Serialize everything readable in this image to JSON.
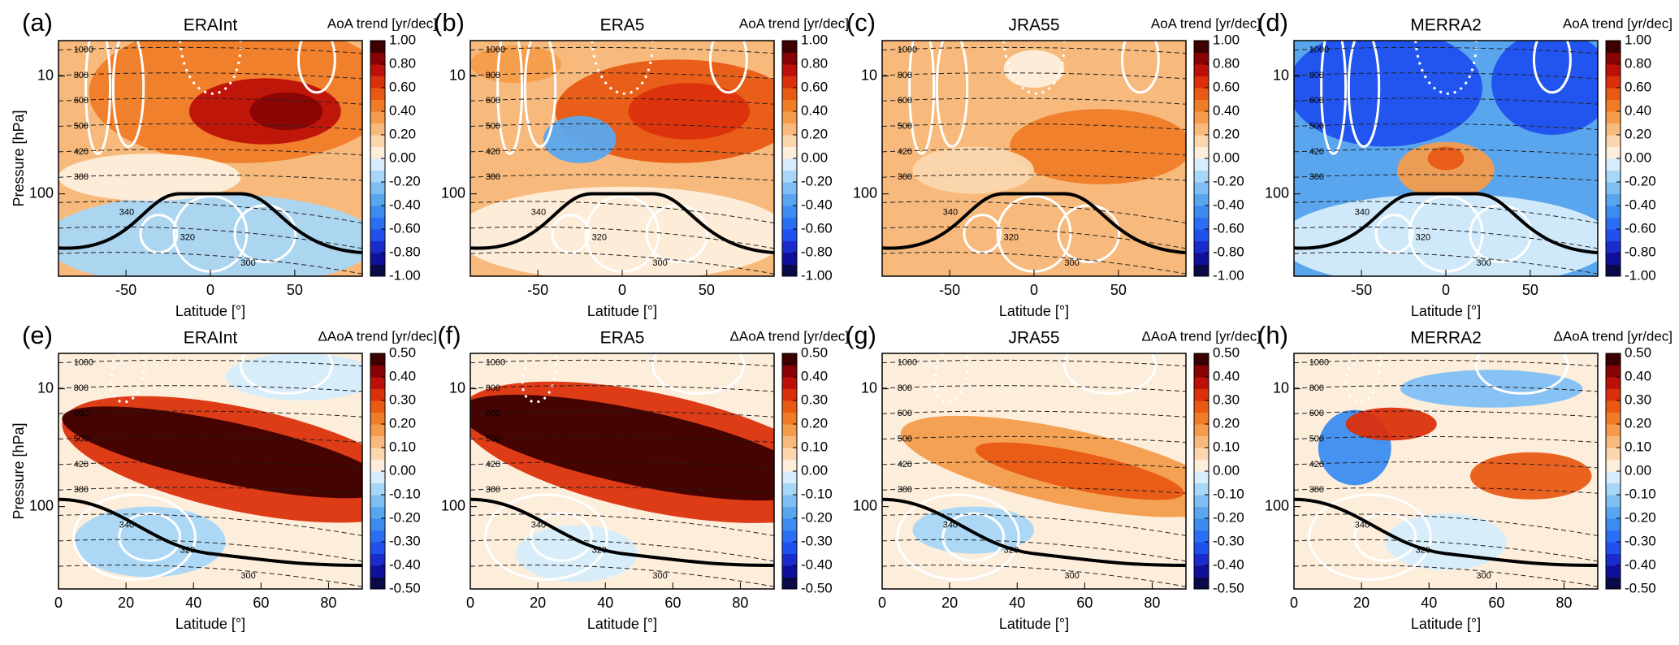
{
  "chart_data": [
    {
      "type": "contour",
      "panel_label": "(a)",
      "title": "ERAInt",
      "colorbar_label": "AoA trend [yr/dec]",
      "xlabel": "Latitude [°]",
      "ylabel": "Pressure [hPa]",
      "xlim": [
        -90,
        90
      ],
      "xticks": [
        -50,
        0,
        50
      ],
      "ylim": [
        500,
        5
      ],
      "yticks": [
        10,
        100
      ],
      "log_y": true,
      "clim": [
        -1,
        1
      ],
      "cticks": [
        {
          "value": 1,
          "label": "1.00"
        },
        {
          "value": 0.8,
          "label": "0.80"
        },
        {
          "value": 0.6,
          "label": "0.60"
        },
        {
          "value": 0.4,
          "label": "0.40"
        },
        {
          "value": 0.2,
          "label": "0.20"
        },
        {
          "value": 0,
          "label": "0.00"
        },
        {
          "value": -0.2,
          "label": "-0.20"
        },
        {
          "value": -0.4,
          "label": "-0.40"
        },
        {
          "value": -0.6,
          "label": "-0.60"
        },
        {
          "value": -0.8,
          "label": "-0.80"
        },
        {
          "value": -1,
          "label": "-1.00"
        }
      ]
    },
    {
      "type": "contour",
      "panel_label": "(b)",
      "title": "ERA5",
      "colorbar_label": "AoA trend [yr/dec]",
      "xlabel": "Latitude [°]",
      "xlim": [
        -90,
        90
      ],
      "xticks": [
        -50,
        0,
        50
      ],
      "ylim": [
        500,
        5
      ],
      "yticks": [
        10,
        100
      ],
      "log_y": true,
      "clim": [
        -1,
        1
      ],
      "cticks": [
        {
          "value": 1,
          "label": "1.00"
        },
        {
          "value": 0.8,
          "label": "0.80"
        },
        {
          "value": 0.6,
          "label": "0.60"
        },
        {
          "value": 0.4,
          "label": "0.40"
        },
        {
          "value": 0.2,
          "label": "0.20"
        },
        {
          "value": 0,
          "label": "0.00"
        },
        {
          "value": -0.2,
          "label": "-0.20"
        },
        {
          "value": -0.4,
          "label": "-0.40"
        },
        {
          "value": -0.6,
          "label": "-0.60"
        },
        {
          "value": -0.8,
          "label": "-0.80"
        },
        {
          "value": -1,
          "label": "-1.00"
        }
      ]
    },
    {
      "type": "contour",
      "panel_label": "(c)",
      "title": "JRA55",
      "colorbar_label": "AoA trend [yr/dec]",
      "xlabel": "Latitude [°]",
      "xlim": [
        -90,
        90
      ],
      "xticks": [
        -50,
        0,
        50
      ],
      "ylim": [
        500,
        5
      ],
      "yticks": [
        10,
        100
      ],
      "log_y": true,
      "clim": [
        -1,
        1
      ],
      "cticks": [
        {
          "value": 1,
          "label": "1.00"
        },
        {
          "value": 0.8,
          "label": "0.80"
        },
        {
          "value": 0.6,
          "label": "0.60"
        },
        {
          "value": 0.4,
          "label": "0.40"
        },
        {
          "value": 0.2,
          "label": "0.20"
        },
        {
          "value": 0,
          "label": "0.00"
        },
        {
          "value": -0.2,
          "label": "-0.20"
        },
        {
          "value": -0.4,
          "label": "-0.40"
        },
        {
          "value": -0.6,
          "label": "-0.60"
        },
        {
          "value": -0.8,
          "label": "-0.80"
        },
        {
          "value": -1,
          "label": "-1.00"
        }
      ]
    },
    {
      "type": "contour",
      "panel_label": "(d)",
      "title": "MERRA2",
      "colorbar_label": "AoA trend [yr/dec]",
      "xlabel": "Latitude [°]",
      "xlim": [
        -90,
        90
      ],
      "xticks": [
        -50,
        0,
        50
      ],
      "ylim": [
        500,
        5
      ],
      "yticks": [
        10,
        100
      ],
      "log_y": true,
      "clim": [
        -1,
        1
      ],
      "cticks": [
        {
          "value": 1,
          "label": "1.00"
        },
        {
          "value": 0.8,
          "label": "0.80"
        },
        {
          "value": 0.6,
          "label": "0.60"
        },
        {
          "value": 0.4,
          "label": "0.40"
        },
        {
          "value": 0.2,
          "label": "0.20"
        },
        {
          "value": 0,
          "label": "0.00"
        },
        {
          "value": -0.2,
          "label": "-0.20"
        },
        {
          "value": -0.4,
          "label": "-0.40"
        },
        {
          "value": -0.6,
          "label": "-0.60"
        },
        {
          "value": -0.8,
          "label": "-0.80"
        },
        {
          "value": -1,
          "label": "-1.00"
        }
      ]
    },
    {
      "type": "contour",
      "panel_label": "(e)",
      "title": "ERAInt",
      "colorbar_label": "ΔAoA trend [yr/dec]",
      "xlabel": "Latitude [°]",
      "ylabel": "Pressure [hPa]",
      "xlim": [
        0,
        90
      ],
      "xticks": [
        0,
        20,
        40,
        60,
        80
      ],
      "ylim": [
        500,
        5
      ],
      "yticks": [
        10,
        100
      ],
      "log_y": true,
      "clim": [
        -0.5,
        0.5
      ],
      "cticks": [
        {
          "value": 0.5,
          "label": "0.50"
        },
        {
          "value": 0.4,
          "label": "0.40"
        },
        {
          "value": 0.3,
          "label": "0.30"
        },
        {
          "value": 0.2,
          "label": "0.20"
        },
        {
          "value": 0.1,
          "label": "0.10"
        },
        {
          "value": 0,
          "label": "0.00"
        },
        {
          "value": -0.1,
          "label": "-0.10"
        },
        {
          "value": -0.2,
          "label": "-0.20"
        },
        {
          "value": -0.3,
          "label": "-0.30"
        },
        {
          "value": -0.4,
          "label": "-0.40"
        },
        {
          "value": -0.5,
          "label": "-0.50"
        }
      ]
    },
    {
      "type": "contour",
      "panel_label": "(f)",
      "title": "ERA5",
      "colorbar_label": "ΔAoA trend [yr/dec]",
      "xlabel": "Latitude [°]",
      "xlim": [
        0,
        90
      ],
      "xticks": [
        0,
        20,
        40,
        60,
        80
      ],
      "ylim": [
        500,
        5
      ],
      "yticks": [
        10,
        100
      ],
      "log_y": true,
      "clim": [
        -0.5,
        0.5
      ],
      "cticks": [
        {
          "value": 0.5,
          "label": "0.50"
        },
        {
          "value": 0.4,
          "label": "0.40"
        },
        {
          "value": 0.3,
          "label": "0.30"
        },
        {
          "value": 0.2,
          "label": "0.20"
        },
        {
          "value": 0.1,
          "label": "0.10"
        },
        {
          "value": 0,
          "label": "0.00"
        },
        {
          "value": -0.1,
          "label": "-0.10"
        },
        {
          "value": -0.2,
          "label": "-0.20"
        },
        {
          "value": -0.3,
          "label": "-0.30"
        },
        {
          "value": -0.4,
          "label": "-0.40"
        },
        {
          "value": -0.5,
          "label": "-0.50"
        }
      ]
    },
    {
      "type": "contour",
      "panel_label": "(g)",
      "title": "JRA55",
      "colorbar_label": "ΔAoA trend [yr/dec]",
      "xlabel": "Latitude [°]",
      "xlim": [
        0,
        90
      ],
      "xticks": [
        0,
        20,
        40,
        60,
        80
      ],
      "ylim": [
        500,
        5
      ],
      "yticks": [
        10,
        100
      ],
      "log_y": true,
      "clim": [
        -0.5,
        0.5
      ],
      "cticks": [
        {
          "value": 0.5,
          "label": "0.50"
        },
        {
          "value": 0.4,
          "label": "0.40"
        },
        {
          "value": 0.3,
          "label": "0.30"
        },
        {
          "value": 0.2,
          "label": "0.20"
        },
        {
          "value": 0.1,
          "label": "0.10"
        },
        {
          "value": 0,
          "label": "0.00"
        },
        {
          "value": -0.1,
          "label": "-0.10"
        },
        {
          "value": -0.2,
          "label": "-0.20"
        },
        {
          "value": -0.3,
          "label": "-0.30"
        },
        {
          "value": -0.4,
          "label": "-0.40"
        },
        {
          "value": -0.5,
          "label": "-0.50"
        }
      ]
    },
    {
      "type": "contour",
      "panel_label": "(h)",
      "title": "MERRA2",
      "colorbar_label": "ΔAoA trend [yr/dec]",
      "xlabel": "Latitude [°]",
      "xlim": [
        0,
        90
      ],
      "xticks": [
        0,
        20,
        40,
        60,
        80
      ],
      "ylim": [
        500,
        5
      ],
      "yticks": [
        10,
        100
      ],
      "log_y": true,
      "clim": [
        -0.5,
        0.5
      ],
      "cticks": [
        {
          "value": 0.5,
          "label": "0.50"
        },
        {
          "value": 0.4,
          "label": "0.40"
        },
        {
          "value": 0.3,
          "label": "0.30"
        },
        {
          "value": 0.2,
          "label": "0.20"
        },
        {
          "value": 0.1,
          "label": "0.10"
        },
        {
          "value": 0,
          "label": "0.00"
        },
        {
          "value": -0.1,
          "label": "-0.10"
        },
        {
          "value": -0.2,
          "label": "-0.20"
        },
        {
          "value": -0.3,
          "label": "-0.30"
        },
        {
          "value": -0.4,
          "label": "-0.40"
        },
        {
          "value": -0.5,
          "label": "-0.50"
        }
      ]
    }
  ],
  "isentrope_labels": [
    1000,
    800,
    600,
    500,
    420,
    380,
    340,
    320,
    300
  ],
  "colormap": [
    "#0a0a48",
    "#10109a",
    "#1a2ccc",
    "#2050ee",
    "#2a6ef4",
    "#3c8cf0",
    "#5aa6ee",
    "#80bff3",
    "#a8d6f7",
    "#d6ecfb",
    "#fdeedc",
    "#fbd6ae",
    "#f7ba7c",
    "#f49c4c",
    "#f07c28",
    "#e85a14",
    "#dc300c",
    "#bc1008",
    "#880404",
    "#3c0000"
  ]
}
